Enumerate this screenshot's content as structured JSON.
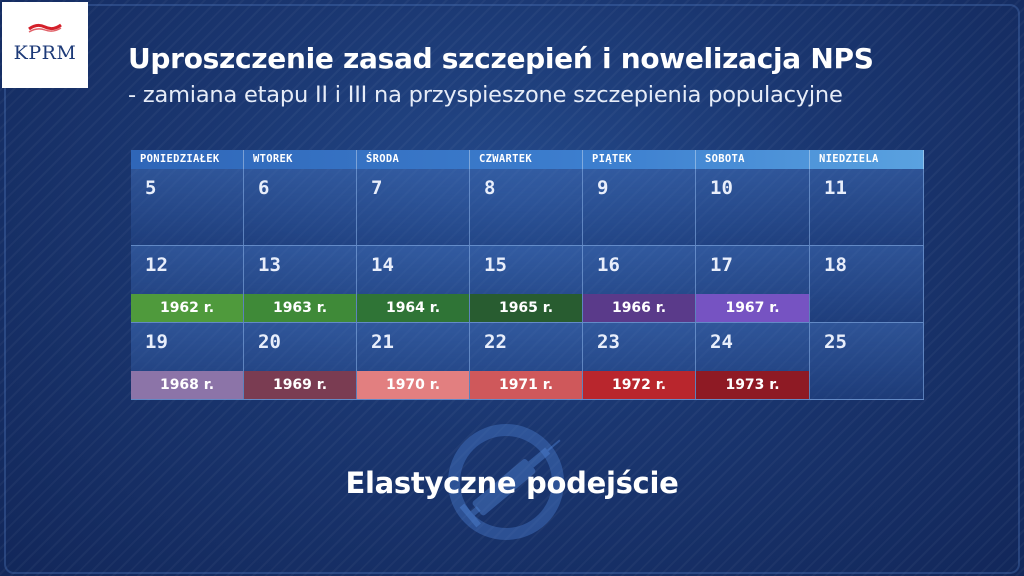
{
  "logo": {
    "text": "KPRM"
  },
  "title": "Uproszczenie zasad szczepień i nowelizacja NPS",
  "subtitle": "- zamiana etapu II i III na przyspieszone szczepienia populacyjne",
  "calendar": {
    "weekdays": [
      "PONIEDZIAŁEK",
      "WTOREK",
      "ŚRODA",
      "CZWARTEK",
      "PIĄTEK",
      "SOBOTA",
      "NIEDZIELA"
    ],
    "weeks": [
      [
        {
          "day": "5"
        },
        {
          "day": "6"
        },
        {
          "day": "7"
        },
        {
          "day": "8"
        },
        {
          "day": "9"
        },
        {
          "day": "10"
        },
        {
          "day": "11"
        }
      ],
      [
        {
          "day": "12",
          "label": "1962 r.",
          "color": "#4f9a3c"
        },
        {
          "day": "13",
          "label": "1963 r.",
          "color": "#3f8a38"
        },
        {
          "day": "14",
          "label": "1964 r.",
          "color": "#2f7436"
        },
        {
          "day": "15",
          "label": "1965 r.",
          "color": "#285c30"
        },
        {
          "day": "16",
          "label": "1966 r.",
          "color": "#5a3a8a"
        },
        {
          "day": "17",
          "label": "1967 r.",
          "color": "#7653c2"
        },
        {
          "day": "18"
        }
      ],
      [
        {
          "day": "19",
          "label": "1968 r.",
          "color": "#8c74a8"
        },
        {
          "day": "20",
          "label": "1969 r.",
          "color": "#7a3c52"
        },
        {
          "day": "21",
          "label": "1970 r.",
          "color": "#e27f80"
        },
        {
          "day": "22",
          "label": "1971 r.",
          "color": "#cf585b"
        },
        {
          "day": "23",
          "label": "1972 r.",
          "color": "#b9262d"
        },
        {
          "day": "24",
          "label": "1973 r.",
          "color": "#8e1a24"
        },
        {
          "day": "25"
        }
      ]
    ]
  },
  "motto": "Elastyczne podejście",
  "icons": {
    "background": "syringe-icon"
  }
}
